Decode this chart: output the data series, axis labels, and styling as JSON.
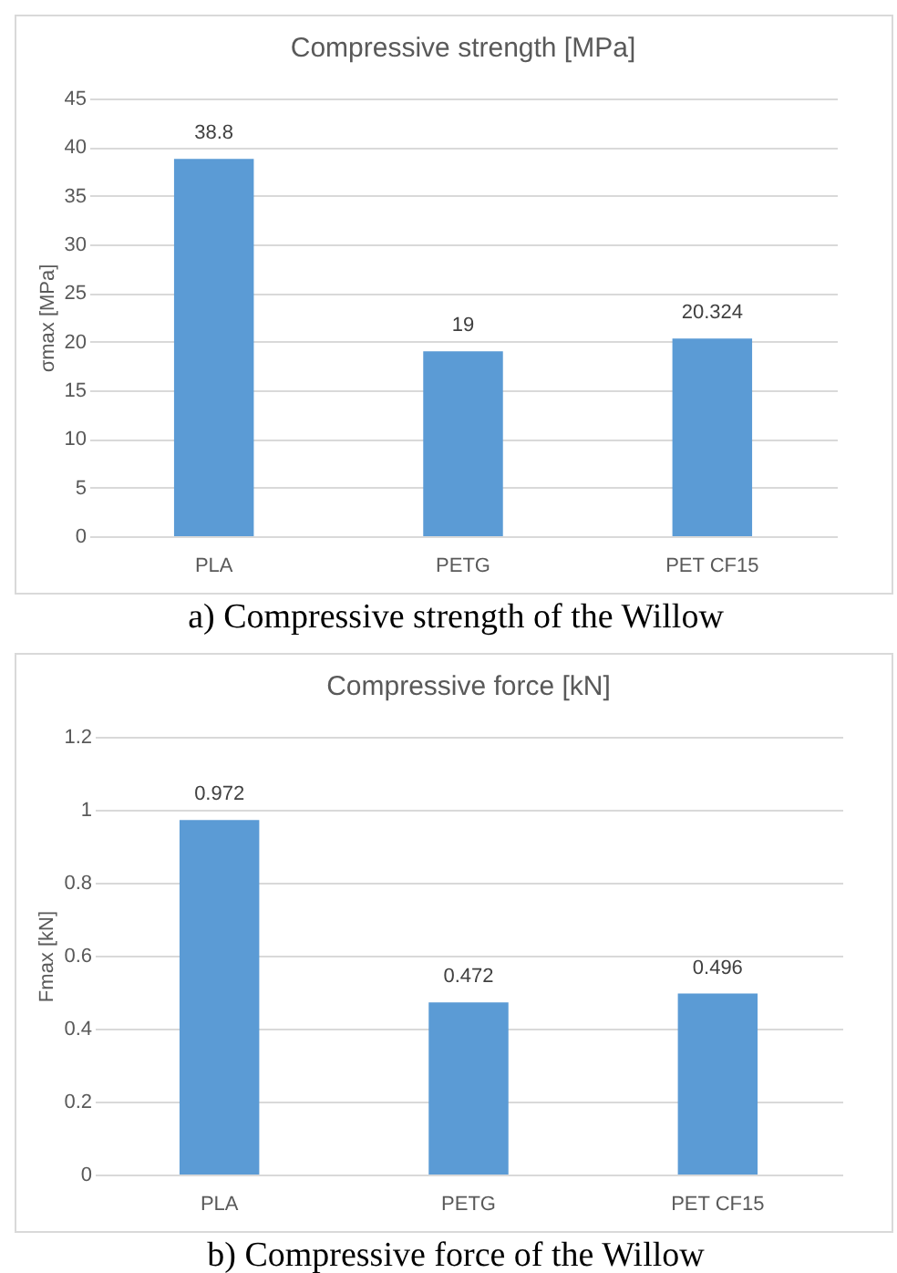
{
  "chart_data": [
    {
      "type": "bar",
      "title": "Compressive strength [MPa]",
      "ylabel": "σmax [MPa]",
      "categories": [
        "PLA",
        "PETG",
        "PET CF15"
      ],
      "values": [
        38.8,
        19,
        20.324
      ],
      "color": "#5b9bd5",
      "ylim": [
        0,
        45
      ],
      "yticks": [
        0,
        5,
        10,
        15,
        20,
        25,
        30,
        35,
        40,
        45
      ],
      "grid": "y",
      "data_labels": true,
      "annotations": [
        "a) Compressive strength of the Willow"
      ]
    },
    {
      "type": "bar",
      "title": "Compressive force [kN]",
      "ylabel": "Fmax [kN]",
      "categories": [
        "PLA",
        "PETG",
        "PET CF15"
      ],
      "values": [
        0.972,
        0.472,
        0.496
      ],
      "color": "#5b9bd5",
      "ylim": [
        0,
        1.2
      ],
      "yticks": [
        0,
        0.2,
        0.4,
        0.6,
        0.8,
        1,
        1.2
      ],
      "grid": "y",
      "data_labels": true,
      "annotations": [
        "b) Compressive force of the Willow"
      ]
    }
  ]
}
